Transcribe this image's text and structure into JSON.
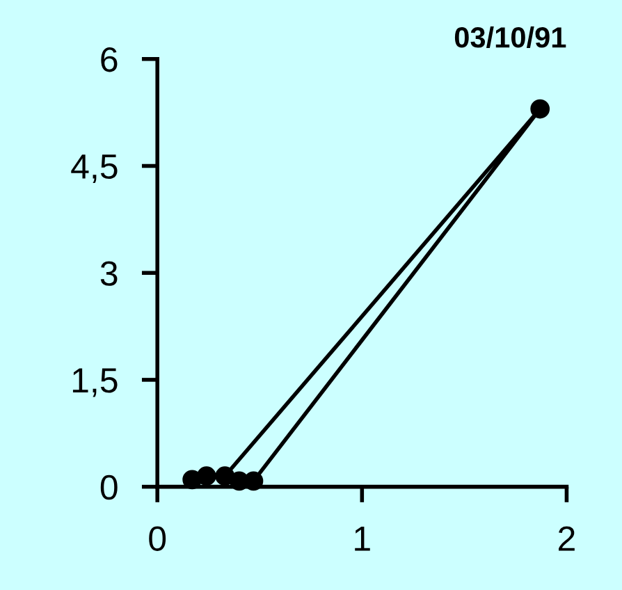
{
  "chart_data": {
    "type": "line",
    "title": "03/10/91",
    "x": [
      0.17,
      0.24,
      0.33,
      1.87,
      0.47,
      0.4
    ],
    "values": [
      0.1,
      0.15,
      0.15,
      5.3,
      0.08,
      0.08
    ],
    "color": "#000000",
    "marker": "circle",
    "line_style": "solid",
    "xlim": [
      0,
      2
    ],
    "xticks": [
      0,
      1,
      2
    ],
    "ylim": [
      0,
      6
    ],
    "yticks": [
      0,
      {
        "value": 1.5,
        "label": "1,5"
      },
      3,
      {
        "value": 4.5,
        "label": "4,5"
      },
      6
    ],
    "grid": false,
    "legend": false
  }
}
